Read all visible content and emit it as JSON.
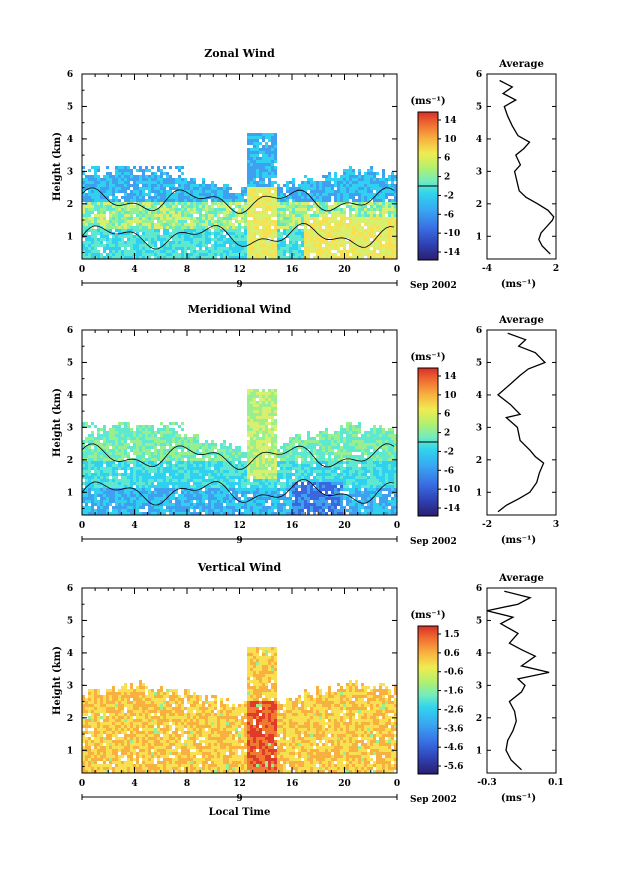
{
  "common": {
    "date_label": "Sep 2002",
    "day_label": "9",
    "time_ticks": [
      0,
      4,
      8,
      12,
      16,
      20,
      0
    ],
    "height_ticks": [
      1,
      2,
      3,
      4,
      5,
      6
    ],
    "ylabel": "Height (km)",
    "unit_label": "(ms⁻¹)",
    "avg_title": "Average",
    "xlabel_bottom": "Local Time"
  },
  "colors": {
    "palette": [
      "#3b2a8c",
      "#2c3fb5",
      "#3a66e0",
      "#3fa0f0",
      "#2fd0f0",
      "#5ee8d0",
      "#98ef90",
      "#d8f070",
      "#f8e050",
      "#f8b040",
      "#f07a30",
      "#e03a2a"
    ]
  },
  "chart_data": [
    {
      "type": "heatmap",
      "title": "Zonal Wind",
      "xlabel": "",
      "ylabel": "Height (km)",
      "x_range_hours": [
        0,
        24
      ],
      "ylim": [
        0.3,
        6
      ],
      "colorbar": {
        "ticks": [
          "14",
          "10",
          "6",
          "2",
          "-2",
          "-6",
          "-10",
          "-14"
        ],
        "range": [
          -16,
          16
        ],
        "unit": "(ms⁻¹)"
      },
      "average_profile": {
        "title": "Average",
        "xlim": [
          -4,
          2
        ],
        "xticks": [
          "-4",
          "2"
        ],
        "unit": "(ms⁻¹)",
        "points": [
          [
            1.5,
            0.45
          ],
          [
            0.8,
            0.7
          ],
          [
            0.5,
            0.9
          ],
          [
            0.7,
            1.1
          ],
          [
            1.2,
            1.3
          ],
          [
            1.7,
            1.5
          ],
          [
            1.8,
            1.6
          ],
          [
            1.3,
            1.8
          ],
          [
            0.4,
            2.0
          ],
          [
            -0.6,
            2.2
          ],
          [
            -1.2,
            2.4
          ],
          [
            -1.4,
            2.7
          ],
          [
            -1.6,
            3.0
          ],
          [
            -1.1,
            3.2
          ],
          [
            -1.5,
            3.5
          ],
          [
            -0.8,
            3.7
          ],
          [
            -0.3,
            3.9
          ],
          [
            -1.3,
            4.1
          ],
          [
            -1.8,
            4.4
          ],
          [
            -2.2,
            4.7
          ],
          [
            -2.5,
            5.0
          ],
          [
            -1.5,
            5.2
          ],
          [
            -2.6,
            5.4
          ],
          [
            -1.8,
            5.6
          ],
          [
            -2.9,
            5.8
          ]
        ]
      }
    },
    {
      "type": "heatmap",
      "title": "Meridional Wind",
      "xlabel": "",
      "ylabel": "Height (km)",
      "x_range_hours": [
        0,
        24
      ],
      "ylim": [
        0.3,
        6
      ],
      "colorbar": {
        "ticks": [
          "14",
          "10",
          "6",
          "2",
          "-2",
          "-6",
          "-10",
          "-14"
        ],
        "range": [
          -16,
          16
        ],
        "unit": "(ms⁻¹)"
      },
      "average_profile": {
        "title": "Average",
        "xlim": [
          -2,
          3
        ],
        "xticks": [
          "-2",
          "3"
        ],
        "unit": "(ms⁻¹)",
        "points": [
          [
            -1.2,
            0.4
          ],
          [
            -0.6,
            0.6
          ],
          [
            0.3,
            0.8
          ],
          [
            1.1,
            1.0
          ],
          [
            1.6,
            1.3
          ],
          [
            1.8,
            1.6
          ],
          [
            2.1,
            1.9
          ],
          [
            1.5,
            2.1
          ],
          [
            1.1,
            2.3
          ],
          [
            0.4,
            2.6
          ],
          [
            0.2,
            3.0
          ],
          [
            -0.6,
            3.3
          ],
          [
            0.4,
            3.4
          ],
          [
            -0.3,
            3.7
          ],
          [
            -1.2,
            4.0
          ],
          [
            -0.4,
            4.3
          ],
          [
            0.4,
            4.6
          ],
          [
            1.0,
            4.8
          ],
          [
            2.2,
            5.0
          ],
          [
            1.5,
            5.3
          ],
          [
            0.3,
            5.5
          ],
          [
            0.8,
            5.7
          ],
          [
            -0.5,
            5.9
          ]
        ]
      }
    },
    {
      "type": "heatmap",
      "title": "Vertical Wind",
      "xlabel": "Local Time",
      "ylabel": "Height (km)",
      "x_range_hours": [
        0,
        24
      ],
      "ylim": [
        0.3,
        6
      ],
      "colorbar": {
        "ticks": [
          "1.5",
          "0.6",
          "-0.6",
          "-1.6",
          "-2.6",
          "-3.6",
          "-4.6",
          "-5.6"
        ],
        "range": [
          -6,
          2
        ],
        "unit": "(ms⁻¹)"
      },
      "average_profile": {
        "title": "Average",
        "xlim": [
          -0.3,
          0.1
        ],
        "xticks": [
          "-0.3",
          "0.1"
        ],
        "unit": "(ms⁻¹)",
        "points": [
          [
            -0.1,
            0.4
          ],
          [
            -0.16,
            0.7
          ],
          [
            -0.19,
            1.0
          ],
          [
            -0.18,
            1.3
          ],
          [
            -0.15,
            1.6
          ],
          [
            -0.13,
            1.9
          ],
          [
            -0.14,
            2.2
          ],
          [
            -0.17,
            2.5
          ],
          [
            -0.1,
            2.8
          ],
          [
            -0.08,
            3.0
          ],
          [
            -0.12,
            3.2
          ],
          [
            0.06,
            3.4
          ],
          [
            -0.1,
            3.6
          ],
          [
            -0.02,
            3.9
          ],
          [
            -0.1,
            4.1
          ],
          [
            -0.17,
            4.3
          ],
          [
            -0.12,
            4.6
          ],
          [
            -0.22,
            4.9
          ],
          [
            -0.15,
            5.1
          ],
          [
            -0.3,
            5.3
          ],
          [
            -0.12,
            5.5
          ],
          [
            -0.05,
            5.7
          ],
          [
            -0.2,
            5.9
          ]
        ]
      }
    }
  ]
}
